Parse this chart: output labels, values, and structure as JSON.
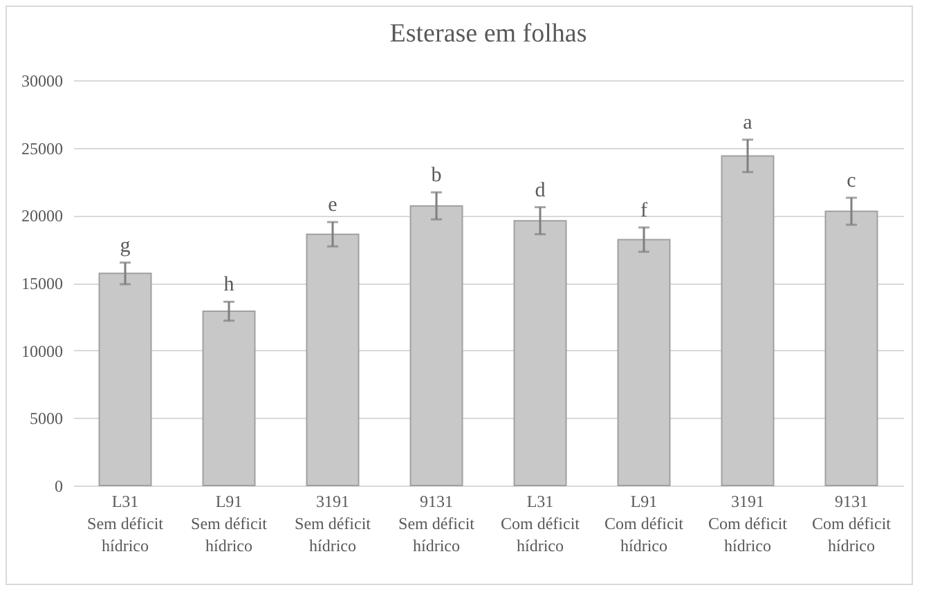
{
  "chart_data": {
    "type": "bar",
    "title": "Esterase  em folhas",
    "categories": [
      "L31\nSem déficit\nhídrico",
      "L91\nSem déficit\nhídrico",
      "3191\nSem déficit\nhídrico",
      "9131\nSem déficit\nhídrico",
      "L31\nCom déficit\nhídrico",
      "L91\nCom déficit\nhídrico",
      "3191\nCom déficit\nhídrico",
      "9131\nCom déficit\nhídrico"
    ],
    "values": [
      15700,
      12900,
      18600,
      20700,
      19600,
      18200,
      24400,
      20300
    ],
    "errors": [
      800,
      700,
      900,
      1000,
      1000,
      900,
      1200,
      1000
    ],
    "color": "#c8c8c8",
    "ylim": [
      0,
      30000
    ],
    "yticks": [
      0,
      5000,
      10000,
      15000,
      20000,
      25000,
      30000
    ],
    "grid": "y",
    "annotations": [
      "g",
      "h",
      "e",
      "b",
      "d",
      "f",
      "a",
      "c"
    ]
  }
}
